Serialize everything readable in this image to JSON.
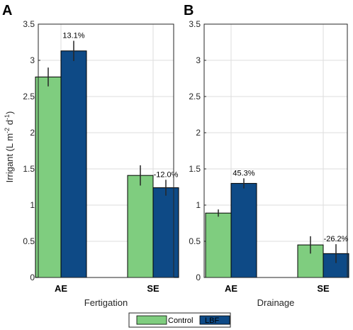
{
  "chart_data": [
    {
      "type": "bar",
      "panel": "A",
      "categories": [
        "AE",
        "SE"
      ],
      "series": [
        {
          "name": "Control",
          "values": [
            2.77,
            1.41
          ],
          "errors": [
            0.13,
            0.14
          ]
        },
        {
          "name": "LBF",
          "values": [
            3.13,
            1.24
          ],
          "errors": [
            0.14,
            0.11
          ]
        }
      ],
      "annotations": [
        {
          "category": "AE",
          "series": "LBF",
          "text": "13.1%"
        },
        {
          "category": "SE",
          "series": "LBF",
          "text": "-12.0%"
        }
      ],
      "xlabel": "Fertigation",
      "ylim": [
        0,
        3.5
      ],
      "yticks": [
        "0",
        "0.5",
        "1",
        "1.5",
        "2",
        "2.5",
        "3",
        "3.5"
      ],
      "grid": true
    },
    {
      "type": "bar",
      "panel": "B",
      "categories": [
        "AE",
        "SE"
      ],
      "series": [
        {
          "name": "Control",
          "values": [
            0.89,
            0.45
          ],
          "errors": [
            0.05,
            0.12
          ]
        },
        {
          "name": "LBF",
          "values": [
            1.3,
            0.33
          ],
          "errors": [
            0.07,
            0.13
          ]
        }
      ],
      "annotations": [
        {
          "category": "AE",
          "series": "LBF",
          "text": "45.3%"
        },
        {
          "category": "SE",
          "series": "LBF",
          "text": "-26.2%"
        }
      ],
      "xlabel": "Drainage",
      "ylim": [
        0,
        3.5
      ],
      "yticks": [
        "0",
        "0.5",
        "1",
        "1.5",
        "2",
        "2.5",
        "3",
        "3.5"
      ],
      "grid": true
    }
  ],
  "ylabel": {
    "main": "Irrigant (L m",
    "sup1": "-2",
    "mid": " d",
    "sup2": "-1",
    "end": ")"
  },
  "legend": {
    "placement": "bottom-center",
    "items": [
      {
        "name": "Control",
        "color": "#7fcd7f"
      },
      {
        "name": "LBF",
        "color": "#0e4a86"
      }
    ]
  },
  "colors": {
    "control": "#7fcd7f",
    "lbf": "#0e4a86"
  }
}
